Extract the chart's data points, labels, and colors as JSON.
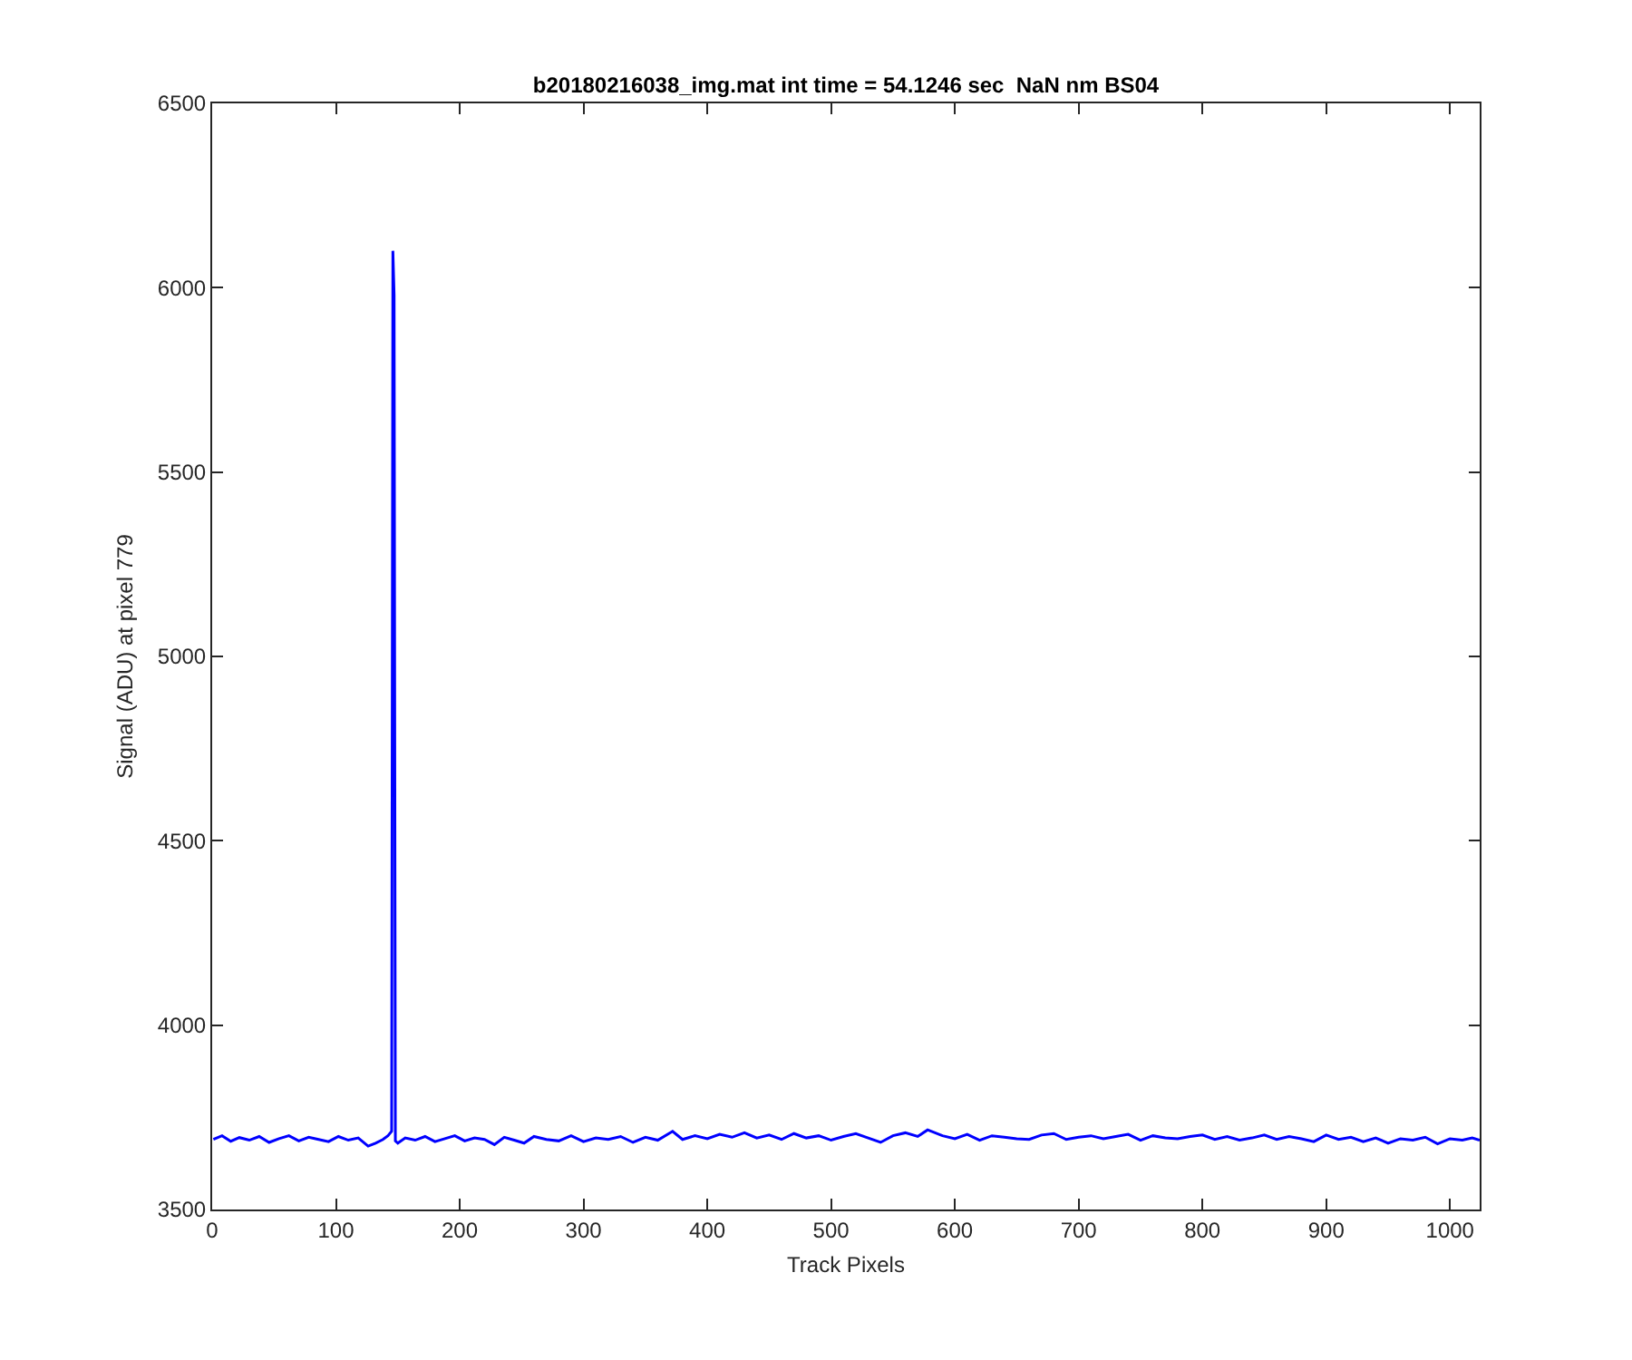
{
  "chart_data": {
    "type": "line",
    "title": "b20180216038_img.mat int time = 54.1246 sec  NaN nm BS04",
    "xlabel": "Track Pixels",
    "ylabel": "Signal (ADU) at pixel 779",
    "x": [
      1,
      8,
      15,
      22,
      30,
      38,
      46,
      54,
      62,
      70,
      78,
      86,
      94,
      102,
      110,
      118,
      126,
      132,
      138,
      142,
      145,
      146,
      147,
      148,
      150,
      156,
      164,
      172,
      180,
      188,
      196,
      204,
      212,
      220,
      228,
      236,
      244,
      252,
      260,
      270,
      280,
      290,
      300,
      310,
      320,
      330,
      340,
      350,
      360,
      372,
      380,
      390,
      400,
      410,
      420,
      430,
      440,
      450,
      460,
      470,
      480,
      490,
      500,
      510,
      520,
      530,
      540,
      550,
      560,
      570,
      578,
      590,
      600,
      610,
      620,
      630,
      640,
      650,
      660,
      670,
      680,
      690,
      700,
      710,
      720,
      730,
      740,
      750,
      760,
      770,
      780,
      790,
      800,
      810,
      820,
      830,
      840,
      850,
      860,
      870,
      880,
      890,
      900,
      910,
      920,
      930,
      940,
      950,
      960,
      970,
      980,
      990,
      1000,
      1010,
      1018,
      1024
    ],
    "series": [
      {
        "color": "#0000ff",
        "values": [
          3690,
          3700,
          3685,
          3695,
          3688,
          3698,
          3682,
          3692,
          3700,
          3686,
          3696,
          3690,
          3684,
          3698,
          3688,
          3694,
          3672,
          3680,
          3690,
          3700,
          3712,
          6100,
          5980,
          3686,
          3680,
          3694,
          3688,
          3698,
          3684,
          3692,
          3700,
          3686,
          3694,
          3690,
          3676,
          3696,
          3688,
          3680,
          3698,
          3690,
          3686,
          3700,
          3684,
          3694,
          3690,
          3698,
          3682,
          3696,
          3688,
          3712,
          3690,
          3700,
          3692,
          3704,
          3696,
          3708,
          3694,
          3702,
          3690,
          3706,
          3694,
          3700,
          3688,
          3698,
          3706,
          3694,
          3682,
          3700,
          3708,
          3698,
          3716,
          3700,
          3692,
          3704,
          3688,
          3700,
          3696,
          3692,
          3690,
          3702,
          3706,
          3690,
          3696,
          3700,
          3692,
          3698,
          3704,
          3688,
          3700,
          3694,
          3692,
          3698,
          3702,
          3690,
          3698,
          3688,
          3694,
          3702,
          3690,
          3698,
          3692,
          3684,
          3702,
          3690,
          3696,
          3684,
          3694,
          3680,
          3692,
          3688,
          3696,
          3678,
          3692,
          3688,
          3694,
          3688
        ]
      }
    ],
    "xlim": [
      0,
      1024
    ],
    "xticks": [
      0,
      100,
      200,
      300,
      400,
      500,
      600,
      700,
      800,
      900,
      1000
    ],
    "ylim": [
      3500,
      6500
    ],
    "yticks": [
      3500,
      4000,
      4500,
      5000,
      5500,
      6000,
      6500
    ],
    "grid": false,
    "marker": "none",
    "line_style": "solid"
  }
}
